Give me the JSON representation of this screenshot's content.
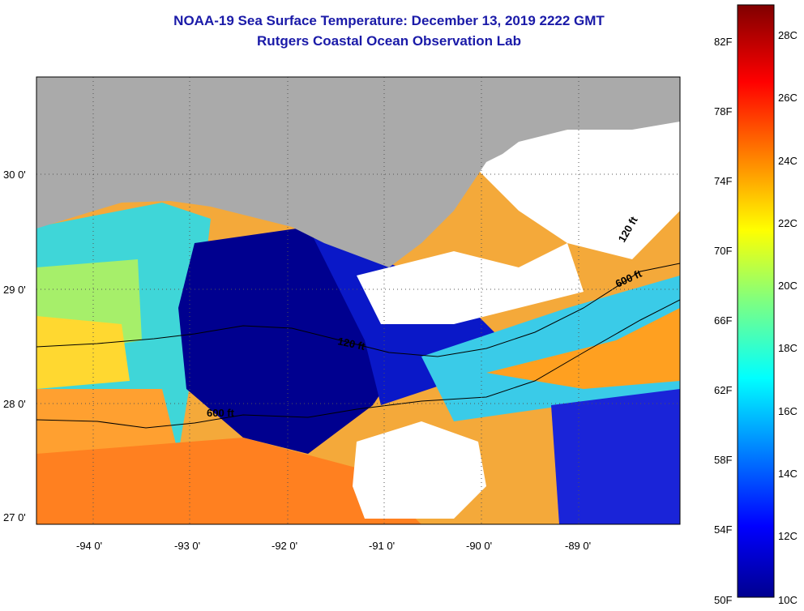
{
  "title": "NOAA-19 Sea Surface Temperature:  December 13, 2019 2222 GMT",
  "subtitle": "Rutgers Coastal Ocean Observation Lab",
  "lat_labels": [
    "30 0'",
    "29 0'",
    "28 0'",
    "27 0'"
  ],
  "lon_labels": [
    "-94 0'",
    "-93 0'",
    "-92 0'",
    "-91 0'",
    "-90 0'",
    "-89 0'"
  ],
  "contours": [
    "600 ft",
    "120 ft",
    "120 ft",
    "600 ft"
  ],
  "colorbar": {
    "f_labels": [
      "82F",
      "78F",
      "74F",
      "70F",
      "66F",
      "62F",
      "58F",
      "54F",
      "50F"
    ],
    "c_labels": [
      "28C",
      "26C",
      "24C",
      "22C",
      "20C",
      "18C",
      "16C",
      "14C",
      "12C",
      "10C"
    ]
  },
  "colors": {
    "land": "#aaaaaa",
    "cloud": "#ffffff",
    "title": "#1a1aa8"
  }
}
